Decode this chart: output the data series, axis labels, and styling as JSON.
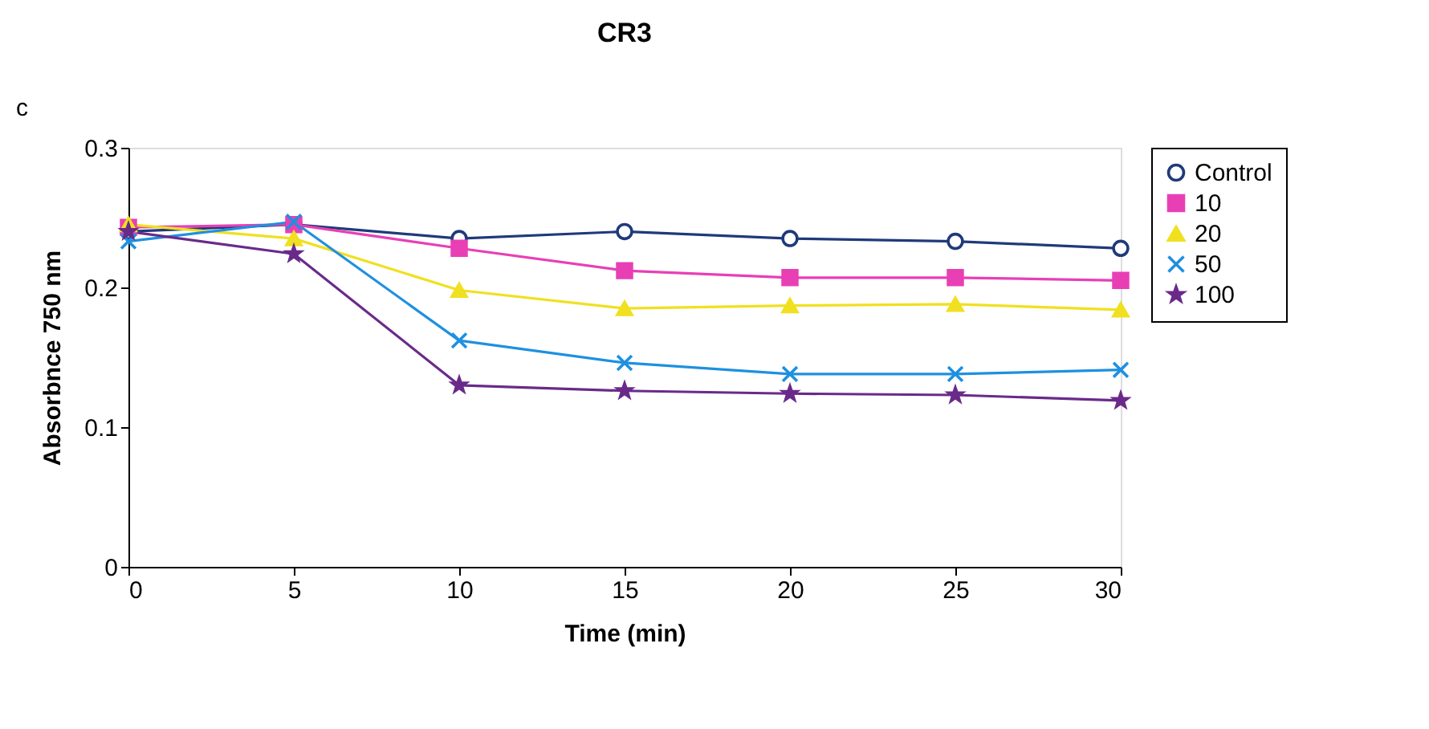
{
  "chart_data": {
    "type": "line",
    "title": "CR3",
    "annotations": [
      "c"
    ],
    "xlabel": "Time (min)",
    "ylabel": "Absorbnce 750 nm",
    "x": [
      0,
      5,
      10,
      15,
      20,
      25,
      30
    ],
    "xlim": [
      0,
      30
    ],
    "xticks": [
      0,
      5,
      10,
      15,
      20,
      25,
      30
    ],
    "ylim": [
      0,
      0.3
    ],
    "yticks": [
      0,
      0.1,
      0.2,
      0.3
    ],
    "grid": false,
    "legend": "right",
    "series": [
      {
        "name": "Control",
        "color": "#1f3a7a",
        "marker": "circle",
        "values": [
          0.24,
          0.245,
          0.235,
          0.24,
          0.235,
          0.233,
          0.228
        ]
      },
      {
        "name": "10",
        "color": "#e83fb5",
        "marker": "square",
        "values": [
          0.243,
          0.245,
          0.228,
          0.212,
          0.207,
          0.207,
          0.205
        ]
      },
      {
        "name": "20",
        "color": "#f0e020",
        "marker": "triangle",
        "values": [
          0.245,
          0.235,
          0.198,
          0.185,
          0.187,
          0.188,
          0.184
        ]
      },
      {
        "name": "50",
        "color": "#1e90e0",
        "marker": "cross",
        "values": [
          0.233,
          0.247,
          0.162,
          0.146,
          0.138,
          0.138,
          0.141
        ]
      },
      {
        "name": "100",
        "color": "#6a2a8a",
        "marker": "star",
        "values": [
          0.24,
          0.224,
          0.13,
          0.126,
          0.124,
          0.123,
          0.119
        ]
      }
    ]
  }
}
